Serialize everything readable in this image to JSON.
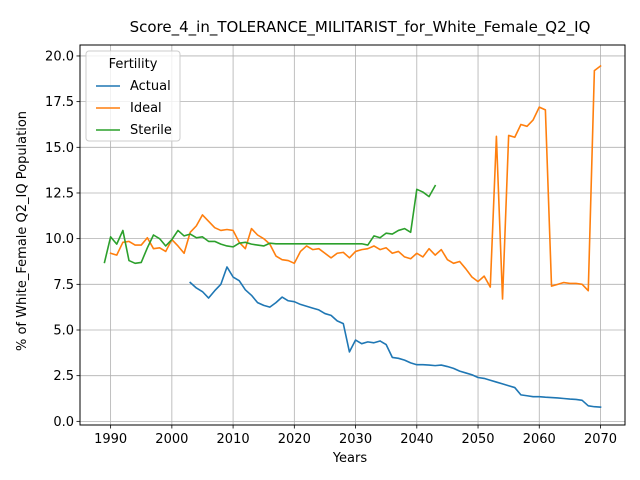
{
  "chart_data": {
    "type": "line",
    "title": "Score_4_in_TOLERANCE_MILITARIST_for_White_Female_Q2_IQ",
    "xlabel": "Years",
    "ylabel": "% of White_Female Q2_IQ Population",
    "xlim": [
      1985,
      2074
    ],
    "ylim": [
      -0.2,
      20.6
    ],
    "xticks": [
      1990,
      2000,
      2010,
      2020,
      2030,
      2040,
      2050,
      2060,
      2070
    ],
    "xtick_labels": [
      "1990",
      "2000",
      "2010",
      "2020",
      "2030",
      "2040",
      "2050",
      "2060",
      "2070"
    ],
    "yticks": [
      0,
      2.5,
      5,
      7.5,
      10,
      12.5,
      15,
      17.5,
      20
    ],
    "ytick_labels": [
      "0.0",
      "2.5",
      "5.0",
      "7.5",
      "10.0",
      "12.5",
      "15.0",
      "17.5",
      "20.0"
    ],
    "grid": true,
    "legend": {
      "title": "Fertility",
      "placement": "top-left"
    },
    "series": [
      {
        "name": "Actual",
        "color": "#1f77b4",
        "x": [
          2003,
          2004,
          2005,
          2006,
          2007,
          2008,
          2009,
          2010,
          2011,
          2012,
          2013,
          2014,
          2015,
          2016,
          2017,
          2018,
          2019,
          2020,
          2021,
          2022,
          2023,
          2024,
          2025,
          2026,
          2027,
          2028,
          2029,
          2030,
          2031,
          2032,
          2033,
          2034,
          2035,
          2036,
          2037,
          2038,
          2039,
          2040,
          2041,
          2042,
          2043,
          2044,
          2045,
          2046,
          2047,
          2048,
          2049,
          2050,
          2051,
          2052,
          2053,
          2054,
          2055,
          2056,
          2057,
          2058,
          2059,
          2060,
          2061,
          2062,
          2063,
          2064,
          2065,
          2066,
          2067,
          2068,
          2069,
          2070
        ],
        "y": [
          7.6,
          7.3,
          7.1,
          6.75,
          7.15,
          7.5,
          8.45,
          7.9,
          7.7,
          7.2,
          6.9,
          6.5,
          6.35,
          6.25,
          6.5,
          6.8,
          6.6,
          6.55,
          6.4,
          6.3,
          6.2,
          6.1,
          5.9,
          5.8,
          5.5,
          5.35,
          3.8,
          4.45,
          4.25,
          4.35,
          4.3,
          4.4,
          4.2,
          3.5,
          3.45,
          3.35,
          3.2,
          3.1,
          3.1,
          3.08,
          3.05,
          3.08,
          3.0,
          2.9,
          2.75,
          2.65,
          2.55,
          2.4,
          2.35,
          2.25,
          2.15,
          2.05,
          1.95,
          1.85,
          1.45,
          1.4,
          1.35,
          1.35,
          1.32,
          1.3,
          1.28,
          1.25,
          1.22,
          1.2,
          1.15,
          0.85,
          0.8,
          0.78
        ]
      },
      {
        "name": "Ideal",
        "color": "#ff7f0e",
        "x": [
          1990,
          1991,
          1992,
          1993,
          1994,
          1995,
          1996,
          1997,
          1998,
          1999,
          2000,
          2001,
          2002,
          2003,
          2004,
          2005,
          2006,
          2007,
          2008,
          2009,
          2010,
          2011,
          2012,
          2013,
          2014,
          2015,
          2016,
          2017,
          2018,
          2019,
          2020,
          2021,
          2022,
          2023,
          2024,
          2025,
          2026,
          2027,
          2028,
          2029,
          2030,
          2031,
          2032,
          2033,
          2034,
          2035,
          2036,
          2037,
          2038,
          2039,
          2040,
          2041,
          2042,
          2043,
          2044,
          2045,
          2046,
          2047,
          2048,
          2049,
          2050,
          2051,
          2052,
          2053,
          2054,
          2055,
          2056,
          2057,
          2058,
          2059,
          2060,
          2061,
          2062,
          2063,
          2064,
          2065,
          2066,
          2067,
          2068,
          2069,
          2070
        ],
        "y": [
          9.2,
          9.1,
          9.8,
          9.85,
          9.65,
          9.65,
          10.05,
          9.45,
          9.5,
          9.3,
          9.95,
          9.6,
          9.2,
          10.35,
          10.7,
          11.3,
          10.95,
          10.6,
          10.45,
          10.5,
          10.45,
          9.8,
          9.45,
          10.55,
          10.2,
          10.0,
          9.7,
          9.05,
          8.85,
          8.8,
          8.65,
          9.3,
          9.6,
          9.4,
          9.45,
          9.2,
          8.95,
          9.2,
          9.25,
          8.95,
          9.3,
          9.4,
          9.45,
          9.6,
          9.4,
          9.5,
          9.2,
          9.3,
          9.0,
          8.9,
          9.2,
          9.0,
          9.45,
          9.1,
          9.4,
          8.85,
          8.65,
          8.75,
          8.35,
          7.9,
          7.65,
          7.95,
          7.35,
          15.6,
          6.7,
          15.65,
          15.55,
          16.25,
          16.15,
          16.5,
          17.2,
          17.05,
          7.4,
          7.5,
          7.6,
          7.55,
          7.55,
          7.5,
          7.15,
          19.2,
          19.45
        ]
      },
      {
        "name": "Sterile",
        "color": "#2ca02c",
        "x": [
          1989,
          1990,
          1991,
          1992,
          1993,
          1994,
          1995,
          1996,
          1997,
          1998,
          1999,
          2000,
          2001,
          2002,
          2003,
          2004,
          2005,
          2006,
          2007,
          2008,
          2009,
          2010,
          2011,
          2012,
          2013,
          2014,
          2015,
          2016,
          2017,
          2018,
          2019,
          2020,
          2021,
          2022,
          2023,
          2024,
          2025,
          2026,
          2027,
          2028,
          2029,
          2030,
          2031,
          2032,
          2033,
          2034,
          2035,
          2036,
          2037,
          2038,
          2039,
          2040,
          2041,
          2042,
          2043
        ],
        "y": [
          8.7,
          10.1,
          9.7,
          10.45,
          8.8,
          8.65,
          8.7,
          9.5,
          10.2,
          10.0,
          9.6,
          9.95,
          10.45,
          10.15,
          10.25,
          10.05,
          10.1,
          9.85,
          9.85,
          9.7,
          9.6,
          9.55,
          9.75,
          9.8,
          9.7,
          9.65,
          9.6,
          9.75,
          9.72,
          9.72,
          9.72,
          9.72,
          9.72,
          9.72,
          9.72,
          9.72,
          9.72,
          9.72,
          9.72,
          9.72,
          9.72,
          9.72,
          9.72,
          9.65,
          10.15,
          10.05,
          10.3,
          10.25,
          10.45,
          10.55,
          10.35,
          12.7,
          12.55,
          12.3,
          12.9
        ]
      }
    ]
  }
}
